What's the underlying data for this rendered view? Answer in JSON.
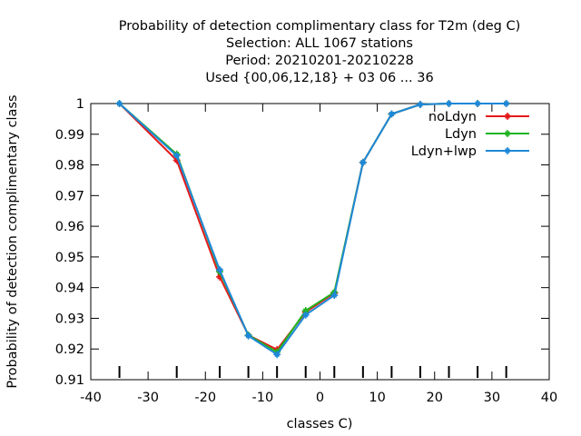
{
  "chart_data": {
    "type": "line",
    "title_lines": [
      "Probability of detection complimentary class  for T2m (deg C)",
      "Selection: ALL   1067 stations",
      "Period: 20210201-20210228",
      "Used {00,06,12,18} + 03 06 ... 36"
    ],
    "xlabel": "classes C)",
    "ylabel": "Probability of detection complimentary class",
    "xlim": [
      -40,
      40
    ],
    "ylim": [
      0.91,
      1.0
    ],
    "xticks": [
      -40,
      -30,
      -20,
      -10,
      0,
      10,
      20,
      30,
      40
    ],
    "yticks": [
      0.91,
      0.92,
      0.93,
      0.94,
      0.95,
      0.96,
      0.97,
      0.98,
      0.99,
      1
    ],
    "ytick_labels": [
      "0.91",
      "0.92",
      "0.93",
      "0.94",
      "0.95",
      "0.96",
      "0.97",
      "0.98",
      "0.99",
      "1"
    ],
    "xtick_labels": [
      "-40",
      "-30",
      "-20",
      "-10",
      "0",
      "10",
      "20",
      "30",
      "40"
    ],
    "extra_xticks": [
      -35,
      -25,
      -17.5,
      -12.5,
      -7.5,
      -2.5,
      2.5,
      7.5,
      12.5,
      17.5,
      22.5,
      27.5,
      32.5
    ],
    "grid": false,
    "legend_position": "top-right",
    "series": [
      {
        "name": "noLdyn",
        "color": "#e41a1c",
        "x": [
          -35,
          -25,
          -17.5,
          -12.5,
          -7.5,
          -2.5,
          2.5,
          7.5,
          12.5,
          17.5,
          22.5,
          27.5,
          32.5
        ],
        "y": [
          1.0,
          0.9815,
          0.9435,
          0.9245,
          0.9198,
          0.932,
          0.9382,
          0.9808,
          0.9966,
          0.9997,
          1.0,
          1.0,
          1.0
        ]
      },
      {
        "name": "Ldyn",
        "color": "#22b322",
        "x": [
          -35,
          -25,
          -17.5,
          -12.5,
          -7.5,
          -2.5,
          2.5,
          7.5,
          12.5,
          17.5,
          22.5,
          27.5,
          32.5
        ],
        "y": [
          1.0,
          0.9835,
          0.9452,
          0.9245,
          0.919,
          0.9325,
          0.9385,
          0.9808,
          0.9966,
          0.9997,
          1.0,
          1.0,
          1.0
        ]
      },
      {
        "name": "Ldyn+lwp",
        "color": "#1f88d8",
        "x": [
          -35,
          -25,
          -17.5,
          -12.5,
          -7.5,
          -2.5,
          2.5,
          7.5,
          12.5,
          17.5,
          22.5,
          27.5,
          32.5
        ],
        "y": [
          1.0,
          0.983,
          0.9458,
          0.9243,
          0.9182,
          0.9311,
          0.9375,
          0.9808,
          0.9966,
          0.9997,
          1.0,
          1.0,
          1.0
        ]
      }
    ]
  }
}
